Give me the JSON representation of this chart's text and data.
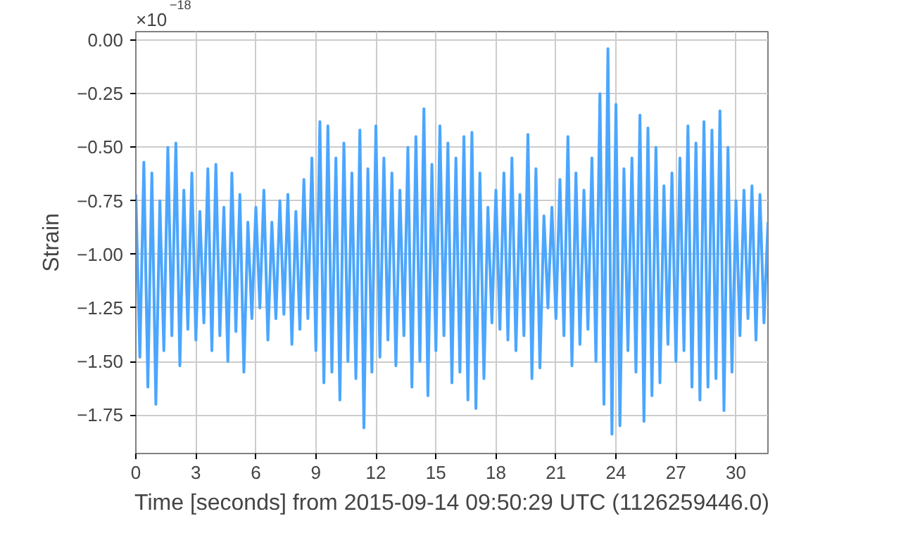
{
  "chart_data": {
    "type": "line",
    "xlabel": "Time [seconds] from 2015-09-14 09:50:29 UTC (1126259446.0)",
    "ylabel": "Strain",
    "annotations": [
      "×10$^{−18}$"
    ],
    "xlim": [
      0,
      31.6
    ],
    "xticks": [
      0,
      3,
      6,
      9,
      12,
      15,
      18,
      21,
      24,
      27,
      30
    ],
    "ylim": [
      -1.93,
      0.04
    ],
    "yticks": [
      {
        "value": 0,
        "label": "0.00"
      },
      {
        "value": -0.25,
        "label": "−0.25"
      },
      {
        "value": -0.5,
        "label": "−0.50"
      },
      {
        "value": -0.75,
        "label": "−0.75"
      },
      {
        "value": -1.0,
        "label": "−1.00"
      },
      {
        "value": -1.25,
        "label": "−1.25"
      },
      {
        "value": -1.5,
        "label": "−1.50"
      },
      {
        "value": -1.75,
        "label": "−1.75"
      }
    ],
    "grid": true,
    "marker": "none",
    "line_style": "solid",
    "series": [
      {
        "color": "#4ba6ff",
        "x": [
          0.0,
          0.2,
          0.4,
          0.6,
          0.8,
          1.0,
          1.2,
          1.4,
          1.6,
          1.8,
          2.0,
          2.2,
          2.4,
          2.6,
          2.8,
          3.0,
          3.2,
          3.4,
          3.6,
          3.8,
          4.0,
          4.2,
          4.4,
          4.6,
          4.8,
          5.0,
          5.2,
          5.4,
          5.6,
          5.8,
          6.0,
          6.2,
          6.4,
          6.6,
          6.8,
          7.0,
          7.2,
          7.4,
          7.6,
          7.8,
          8.0,
          8.2,
          8.4,
          8.6,
          8.8,
          9.0,
          9.2,
          9.4,
          9.6,
          9.8,
          10.0,
          10.2,
          10.4,
          10.6,
          10.8,
          11.0,
          11.2,
          11.4,
          11.6,
          11.8,
          12.0,
          12.2,
          12.4,
          12.6,
          12.8,
          13.0,
          13.2,
          13.4,
          13.6,
          13.8,
          14.0,
          14.2,
          14.4,
          14.6,
          14.8,
          15.0,
          15.2,
          15.4,
          15.6,
          15.8,
          16.0,
          16.2,
          16.4,
          16.6,
          16.8,
          17.0,
          17.2,
          17.4,
          17.6,
          17.8,
          18.0,
          18.2,
          18.4,
          18.6,
          18.8,
          19.0,
          19.2,
          19.4,
          19.6,
          19.8,
          20.0,
          20.2,
          20.4,
          20.6,
          20.8,
          21.0,
          21.2,
          21.4,
          21.6,
          21.8,
          22.0,
          22.2,
          22.4,
          22.6,
          22.8,
          23.0,
          23.2,
          23.4,
          23.6,
          23.8,
          24.0,
          24.2,
          24.4,
          24.6,
          24.8,
          25.0,
          25.2,
          25.4,
          25.6,
          25.8,
          26.0,
          26.2,
          26.4,
          26.6,
          26.8,
          27.0,
          27.2,
          27.4,
          27.6,
          27.8,
          28.0,
          28.2,
          28.4,
          28.6,
          28.8,
          29.0,
          29.2,
          29.4,
          29.6,
          29.8,
          30.0,
          30.2,
          30.4,
          30.6,
          30.8,
          31.0,
          31.2,
          31.4,
          31.6
        ],
        "values": [
          -0.72,
          -1.48,
          -0.57,
          -1.62,
          -0.62,
          -1.7,
          -0.75,
          -1.45,
          -0.5,
          -1.38,
          -0.48,
          -1.52,
          -0.7,
          -1.35,
          -0.62,
          -1.4,
          -0.8,
          -1.32,
          -0.6,
          -1.45,
          -0.58,
          -1.38,
          -0.78,
          -1.5,
          -0.62,
          -1.36,
          -0.72,
          -1.55,
          -0.85,
          -1.3,
          -0.78,
          -1.25,
          -0.7,
          -1.4,
          -0.85,
          -1.3,
          -0.75,
          -1.28,
          -0.72,
          -1.42,
          -0.8,
          -1.35,
          -0.65,
          -1.3,
          -0.55,
          -1.45,
          -0.38,
          -1.6,
          -0.4,
          -1.55,
          -0.55,
          -1.68,
          -0.48,
          -1.5,
          -0.62,
          -1.58,
          -0.42,
          -1.81,
          -0.6,
          -1.55,
          -0.4,
          -1.48,
          -0.55,
          -1.4,
          -0.62,
          -1.52,
          -0.7,
          -1.38,
          -0.5,
          -1.62,
          -0.45,
          -1.5,
          -0.32,
          -1.66,
          -0.58,
          -1.45,
          -0.4,
          -1.38,
          -0.48,
          -1.6,
          -0.55,
          -1.55,
          -0.45,
          -1.68,
          -0.43,
          -1.72,
          -0.62,
          -1.58,
          -0.78,
          -1.32,
          -0.7,
          -1.35,
          -0.62,
          -1.4,
          -0.55,
          -1.45,
          -0.72,
          -1.38,
          -0.44,
          -1.58,
          -0.6,
          -1.53,
          -0.82,
          -1.25,
          -0.78,
          -1.3,
          -0.65,
          -1.38,
          -0.45,
          -1.52,
          -0.62,
          -1.42,
          -0.7,
          -1.35,
          -0.55,
          -1.5,
          -0.25,
          -1.7,
          -0.04,
          -1.84,
          -0.3,
          -1.8,
          -0.6,
          -1.45,
          -0.55,
          -1.55,
          -0.35,
          -1.78,
          -0.41,
          -1.66,
          -0.5,
          -1.6,
          -0.68,
          -1.42,
          -0.62,
          -1.5,
          -0.55,
          -1.45,
          -0.4,
          -1.62,
          -0.48,
          -1.68,
          -0.38,
          -1.62,
          -0.42,
          -1.58,
          -0.33,
          -1.73,
          -0.5,
          -1.55,
          -0.75,
          -1.38,
          -0.7,
          -1.3,
          -0.68,
          -1.4,
          -0.72,
          -1.32,
          -0.85
        ]
      }
    ]
  }
}
